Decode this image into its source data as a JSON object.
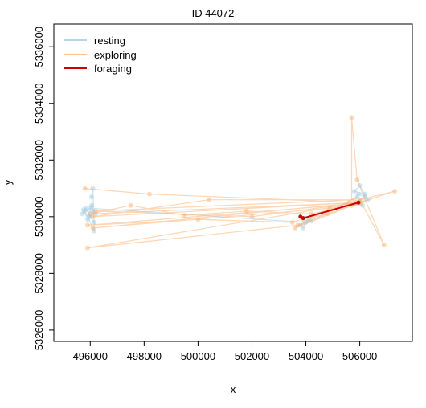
{
  "chart_data": {
    "type": "line",
    "title": "ID 44072",
    "xlabel": "x",
    "ylabel": "y",
    "xlim": [
      494650,
      507950
    ],
    "ylim": [
      5325600,
      5336800
    ],
    "xticks": [
      496000,
      498000,
      500000,
      502000,
      504000,
      506000
    ],
    "yticks": [
      5326000,
      5328000,
      5330000,
      5332000,
      5334000,
      5336000
    ],
    "grid": false,
    "legend_position": "top-left",
    "legend": [
      {
        "label": "resting",
        "color": "#9ecae1"
      },
      {
        "label": "exploring",
        "color": "#fdae6b"
      },
      {
        "label": "foraging",
        "color": "#cc0000"
      }
    ],
    "series": [
      {
        "name": "resting",
        "color": "#9ecae1",
        "points": [
          [
            495700,
            5330100
          ],
          [
            495850,
            5330300
          ],
          [
            496000,
            5330000
          ],
          [
            496100,
            5330200
          ],
          [
            495900,
            5329900
          ],
          [
            495750,
            5330250
          ],
          [
            496200,
            5330100
          ],
          [
            496050,
            5330400
          ],
          [
            495950,
            5330050
          ],
          [
            496150,
            5329800
          ],
          [
            496050,
            5330700
          ],
          [
            496100,
            5331000
          ],
          [
            496150,
            5329500
          ],
          [
            495800,
            5330200
          ],
          [
            496000,
            5330300
          ],
          [
            504000,
            5329800
          ],
          [
            503900,
            5329600
          ],
          [
            504100,
            5329900
          ],
          [
            503800,
            5329700
          ],
          [
            504200,
            5329850
          ],
          [
            505900,
            5330700
          ],
          [
            506000,
            5330550
          ],
          [
            506200,
            5330800
          ],
          [
            505800,
            5330900
          ],
          [
            506000,
            5331100
          ],
          [
            506300,
            5330600
          ],
          [
            505850,
            5330450
          ],
          [
            506100,
            5330400
          ],
          [
            506200,
            5330700
          ],
          [
            505950,
            5330800
          ]
        ]
      },
      {
        "name": "exploring",
        "color": "#fdae6b",
        "points": [
          [
            495800,
            5331000
          ],
          [
            498200,
            5330800
          ],
          [
            505900,
            5330500
          ],
          [
            496100,
            5330000
          ],
          [
            500400,
            5330600
          ],
          [
            505800,
            5330600
          ],
          [
            496200,
            5330200
          ],
          [
            502000,
            5330000
          ],
          [
            506000,
            5330500
          ],
          [
            495900,
            5328900
          ],
          [
            503700,
            5329700
          ],
          [
            505700,
            5330400
          ],
          [
            505700,
            5333500
          ],
          [
            505900,
            5331300
          ],
          [
            506900,
            5329000
          ],
          [
            506000,
            5330600
          ],
          [
            507300,
            5330900
          ],
          [
            506000,
            5330500
          ],
          [
            496100,
            5329600
          ],
          [
            504900,
            5330300
          ],
          [
            503600,
            5329600
          ],
          [
            506000,
            5330500
          ],
          [
            496000,
            5330100
          ],
          [
            497500,
            5330400
          ],
          [
            499500,
            5330050
          ],
          [
            501800,
            5330200
          ],
          [
            504200,
            5330100
          ],
          [
            505800,
            5330450
          ],
          [
            495900,
            5329700
          ],
          [
            500000,
            5329900
          ],
          [
            503500,
            5329800
          ],
          [
            505600,
            5330500
          ],
          [
            504800,
            5330100
          ],
          [
            503900,
            5329900
          ],
          [
            505500,
            5330400
          ]
        ]
      },
      {
        "name": "foraging",
        "color": "#cc0000",
        "points": [
          [
            503800,
            5330000
          ],
          [
            503900,
            5329950
          ],
          [
            505950,
            5330500
          ]
        ]
      }
    ]
  }
}
